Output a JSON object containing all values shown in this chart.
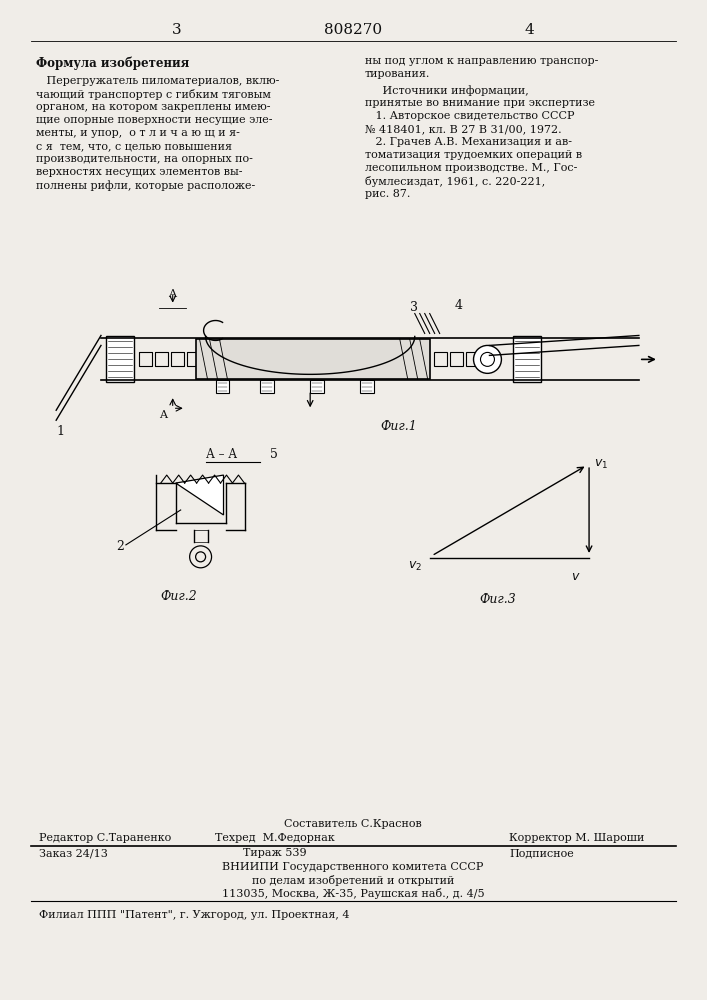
{
  "bg_color": "#f0ede8",
  "page_width": 7.07,
  "page_height": 10.0,
  "header": {
    "page_left": "3",
    "title": "808270",
    "page_right": "4"
  },
  "left_col_header": "Формула изобретения",
  "left_col_text": [
    "   Перегружатель пиломатериалов, вклю-",
    "чающий транспортер с гибким тяговым",
    "органом, на котором закреплены имею-",
    "щие опорные поверхности несущие эле-",
    "менты, и упор,  о т л и ч а ю щ и я-",
    "с я  тем, что, с целью повышения",
    "производительности, на опорных по-",
    "верхностях несущих элементов вы-",
    "полнены рифли, которые расположе-"
  ],
  "right_col_text1": [
    "ны под углом к направлению транспор-",
    "тирования."
  ],
  "right_col_header": "     Источники информации,",
  "right_col_text2": [
    "принятые во внимание при экспертизе",
    "   1. Авторское свидетельство СССР",
    "№ 418401, кл. В 27 В 31/00, 1972.",
    "   2. Грачев А.В. Механизация и ав-",
    "томатизация трудоемких операций в",
    "лесопильном производстве. М., Гос-",
    "бумлесиздат, 1961, с. 220-221,",
    "рис. 87."
  ],
  "footer_line1a": "Редактор С.Тараненко",
  "footer_line1b": "Составитель С.Краснов",
  "footer_line1c": "Корректор М. Шароши",
  "footer_line2a": "Заказ 24/13",
  "footer_line2b": "Тираж 539",
  "footer_line2c": "Подписное",
  "footer_line2d": "Техред  М.Федорнак",
  "footer_line3": "ВНИИПИ Государственного комитета СССР",
  "footer_line4": "по делам изобретений и открытий",
  "footer_line5": "113035, Москва, Ж-35, Раушская наб., д. 4/5",
  "footer_line6": "Филиал ППП \"Патент\", г. Ужгород, ул. Проектная, 4"
}
